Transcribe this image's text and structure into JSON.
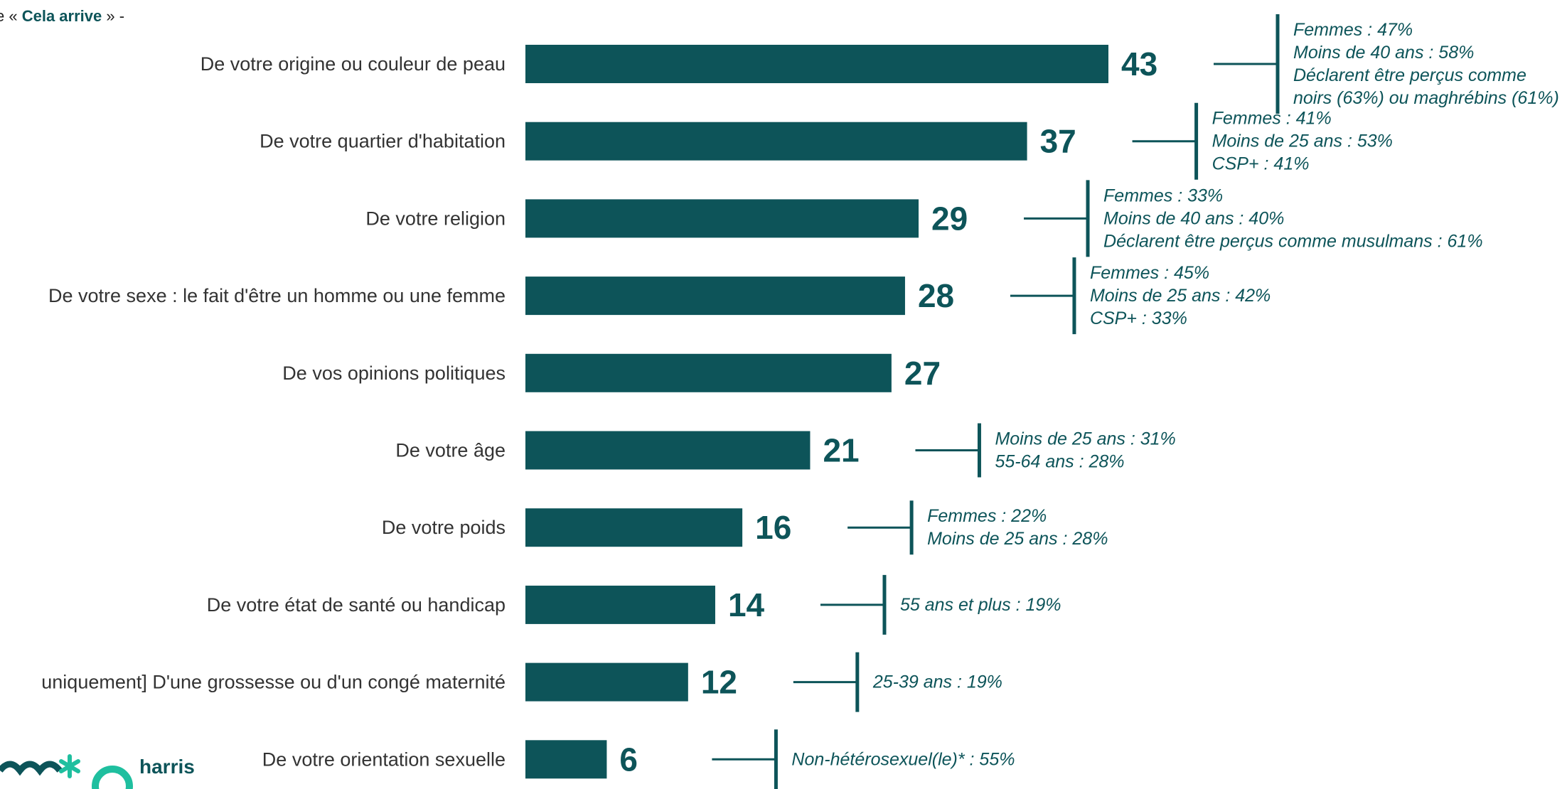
{
  "header": {
    "pre": "e « ",
    "highlight": "Cela arrive",
    "post": " » -"
  },
  "colors": {
    "bar": "#0d5459",
    "label": "#333333",
    "accent": "#0d5459",
    "logo_star": "#1fbf9f"
  },
  "logo": {
    "text": "harris",
    "name": "harris-interactive-logo"
  },
  "chart_data": {
    "type": "bar",
    "orientation": "horizontal",
    "xlim": [
      0,
      45
    ],
    "grid": false,
    "categories": [
      "De votre origine ou couleur de peau",
      "De votre quartier d'habitation",
      "De votre religion",
      "De votre sexe : le fait d'être un homme ou une femme",
      "De vos opinions politiques",
      "De votre âge",
      "De votre poids",
      "De votre état de santé ou handicap",
      "uniquement] D'une grossesse ou d'un congé maternité",
      "De votre orientation sexuelle"
    ],
    "values": [
      43,
      37,
      29,
      28,
      27,
      21,
      16,
      14,
      12,
      6
    ],
    "annotations": [
      [
        "Femmes : 47%",
        "Moins de 40 ans : 58%",
        "Déclarent être perçus comme",
        "noirs (63%) ou maghrébins (61%)"
      ],
      [
        "Femmes : 41%",
        "Moins de 25 ans : 53%",
        "CSP+ : 41%"
      ],
      [
        "Femmes : 33%",
        "Moins de 40 ans : 40%",
        "Déclarent être perçus comme musulmans : 61%"
      ],
      [
        "Femmes : 45%",
        "Moins de 25 ans : 42%",
        "CSP+ : 33%"
      ],
      [],
      [
        "Moins de 25 ans : 31%",
        "55-64 ans : 28%"
      ],
      [
        "Femmes : 22%",
        "Moins de 25 ans : 28%"
      ],
      [
        "55 ans et plus : 19%"
      ],
      [
        "25-39 ans : 19%"
      ],
      [
        "Non-hétérosexuel(le)* : 55%"
      ]
    ]
  }
}
